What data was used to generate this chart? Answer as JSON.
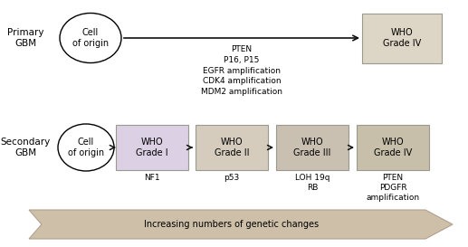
{
  "background_color": "#ffffff",
  "fig_width": 5.17,
  "fig_height": 2.73,
  "dpi": 100,
  "primary_label": "Primary\nGBM",
  "secondary_label": "Secondary\nGBM",
  "cell_of_origin_text": "Cell\nof origin",
  "who_grade_iv_primary_text": "WHO\nGrade IV",
  "primary_box_color": "#ddd5c5",
  "primary_arrow_annotations": "PTEN\nP16, P15\nEGFR amplification\nCDK4 amplification\nMDM2 amplification",
  "secondary_boxes": [
    {
      "label": "WHO\nGrade I",
      "color": "#dcd0e4",
      "below": "NF1"
    },
    {
      "label": "WHO\nGrade II",
      "color": "#d5ccbe",
      "below": "p53"
    },
    {
      "label": "WHO\nGrade III",
      "color": "#c9c0b2",
      "below": "LOH 19q\nRB"
    },
    {
      "label": "WHO\nGrade IV",
      "color": "#c8bfab",
      "below": "PTEN\nPDGFR\namplification"
    }
  ],
  "arrow_color": "#111111",
  "box_edge_color": "#999990",
  "bottom_arrow_facecolor": "#cec0a8",
  "bottom_arrow_edgecolor": "#b0a090",
  "bottom_arrow_text": "Increasing numbers of genetic changes",
  "fs_tiny": 6.5,
  "fs_small": 7.0,
  "fs_label": 7.5
}
